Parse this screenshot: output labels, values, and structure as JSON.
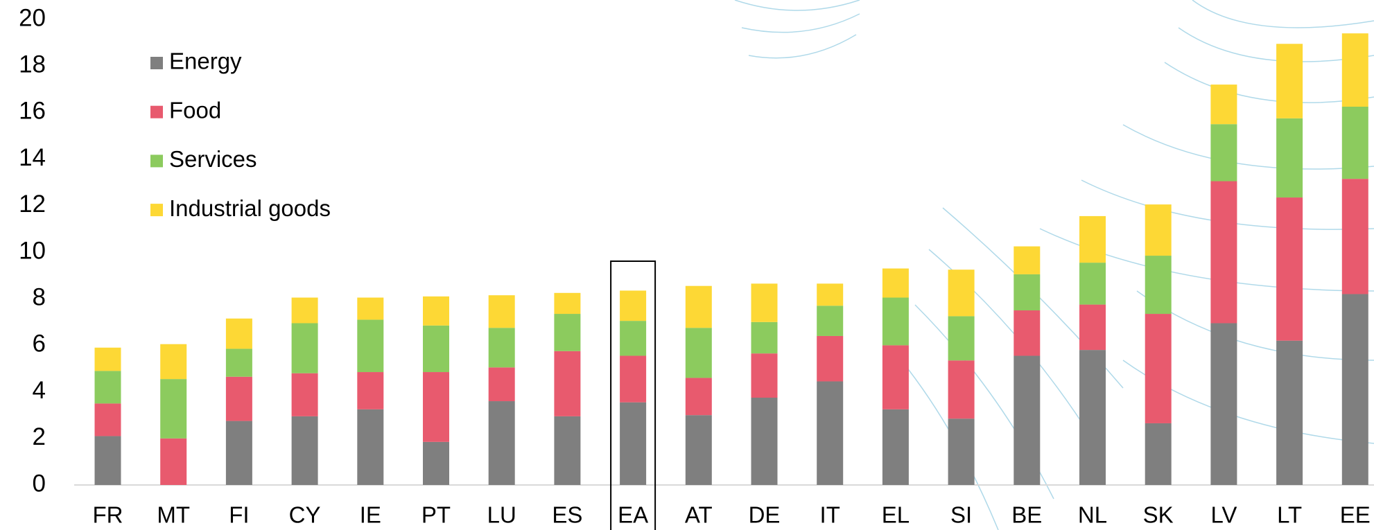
{
  "chart_data": {
    "type": "stacked_bar",
    "categories": [
      "FR",
      "MT",
      "FI",
      "CY",
      "IE",
      "PT",
      "LU",
      "ES",
      "EA",
      "AT",
      "DE",
      "IT",
      "EL",
      "SI",
      "BE",
      "NL",
      "SK",
      "LV",
      "LT",
      "EE"
    ],
    "series": [
      {
        "name": "Energy",
        "color": "#7f7f7f",
        "values": [
          2.1,
          0,
          2.75,
          2.95,
          3.25,
          1.85,
          3.6,
          2.95,
          3.55,
          3.0,
          3.75,
          4.45,
          3.25,
          2.85,
          5.55,
          5.8,
          2.65,
          6.95,
          6.2,
          8.2
        ]
      },
      {
        "name": "Food",
        "color": "#e85a6e",
        "values": [
          1.4,
          2.0,
          1.9,
          1.85,
          1.6,
          3.0,
          1.45,
          2.8,
          2.0,
          1.6,
          1.9,
          1.95,
          2.75,
          2.5,
          1.95,
          1.95,
          4.7,
          6.1,
          6.15,
          4.95
        ]
      },
      {
        "name": "Services",
        "color": "#8ccb5e",
        "values": [
          1.4,
          2.55,
          1.2,
          2.15,
          2.25,
          2.0,
          1.7,
          1.6,
          1.5,
          2.15,
          1.35,
          1.3,
          2.05,
          1.9,
          1.55,
          1.8,
          2.5,
          2.45,
          3.4,
          3.1
        ]
      },
      {
        "name": "Industrial goods",
        "color": "#fdd835",
        "values": [
          1.0,
          1.5,
          1.3,
          1.1,
          0.95,
          1.25,
          1.4,
          0.9,
          1.3,
          1.8,
          1.65,
          0.95,
          1.25,
          2.0,
          1.2,
          2.0,
          2.2,
          1.7,
          3.2,
          3.15
        ]
      }
    ],
    "ylim": [
      0,
      20
    ],
    "yticks": [
      0,
      2,
      4,
      6,
      8,
      10,
      12,
      14,
      16,
      18,
      20
    ],
    "highlight": 8,
    "legend": "top-left"
  }
}
